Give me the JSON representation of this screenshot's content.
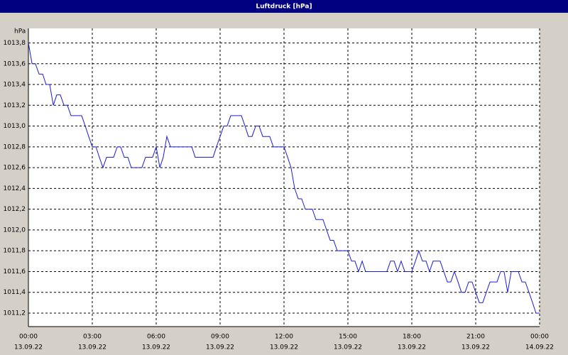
{
  "chart_data": {
    "type": "line",
    "title": "Luftdruck [hPa]",
    "y_unit": "hPa",
    "grid": true,
    "xlim": [
      0,
      24
    ],
    "ylim": [
      1011.07,
      1013.94
    ],
    "xticks": [
      {
        "value": 0,
        "label": "00:00",
        "date": "13.09.22"
      },
      {
        "value": 3,
        "label": "03:00",
        "date": "13.09.22"
      },
      {
        "value": 6,
        "label": "06:00",
        "date": "13.09.22"
      },
      {
        "value": 9,
        "label": "09:00",
        "date": "13.09.22"
      },
      {
        "value": 12,
        "label": "12:00",
        "date": "13.09.22"
      },
      {
        "value": 15,
        "label": "15:00",
        "date": "13.09.22"
      },
      {
        "value": 18,
        "label": "18:00",
        "date": "13.09.22"
      },
      {
        "value": 21,
        "label": "21:00",
        "date": "13.09.22"
      },
      {
        "value": 24,
        "label": "00:00",
        "date": "14.09.22"
      }
    ],
    "yticks": [
      {
        "value": 1011.2,
        "label": "1011,2"
      },
      {
        "value": 1011.4,
        "label": "1011,4"
      },
      {
        "value": 1011.6,
        "label": "1011,6"
      },
      {
        "value": 1011.8,
        "label": "1011,8"
      },
      {
        "value": 1012.0,
        "label": "1012,0"
      },
      {
        "value": 1012.2,
        "label": "1012,2"
      },
      {
        "value": 1012.4,
        "label": "1012,4"
      },
      {
        "value": 1012.6,
        "label": "1012,6"
      },
      {
        "value": 1012.8,
        "label": "1012,8"
      },
      {
        "value": 1013.0,
        "label": "1013,0"
      },
      {
        "value": 1013.2,
        "label": "1013,2"
      },
      {
        "value": 1013.4,
        "label": "1013,4"
      },
      {
        "value": 1013.6,
        "label": "1013,6"
      },
      {
        "value": 1013.8,
        "label": "1013,8"
      }
    ],
    "series": [
      {
        "color": "#1c1cd8",
        "x": [
          0,
          0.17,
          0.33,
          0.5,
          0.67,
          0.83,
          1.0,
          1.17,
          1.33,
          1.5,
          1.67,
          1.83,
          2.0,
          2.5,
          2.67,
          2.83,
          3.0,
          3.17,
          3.33,
          3.5,
          3.67,
          4.0,
          4.17,
          4.33,
          4.5,
          4.67,
          4.83,
          5.33,
          5.5,
          5.83,
          6.0,
          6.17,
          6.33,
          6.5,
          6.67,
          7.67,
          7.83,
          8.67,
          8.83,
          9.0,
          9.17,
          9.33,
          9.5,
          10.0,
          10.17,
          10.33,
          10.5,
          10.67,
          10.83,
          11.0,
          11.33,
          11.5,
          11.83,
          12.0,
          12.17,
          12.33,
          12.5,
          12.67,
          12.83,
          13.0,
          13.33,
          13.5,
          13.83,
          14.0,
          14.17,
          14.33,
          14.5,
          14.83,
          15.0,
          15.17,
          15.33,
          15.5,
          15.67,
          15.83,
          16.83,
          17.0,
          17.17,
          17.33,
          17.5,
          17.67,
          17.83,
          18.0,
          18.17,
          18.33,
          18.5,
          18.67,
          18.83,
          19.0,
          19.33,
          19.5,
          19.67,
          19.83,
          20.0,
          20.17,
          20.33,
          20.5,
          20.67,
          20.83,
          21.0,
          21.17,
          21.33,
          21.5,
          21.67,
          22.0,
          22.17,
          22.33,
          22.5,
          22.67,
          23.0,
          23.17,
          23.33,
          23.5,
          23.67,
          23.83,
          24.0
        ],
        "values": [
          1013.8,
          1013.6,
          1013.6,
          1013.5,
          1013.5,
          1013.4,
          1013.4,
          1013.2,
          1013.3,
          1013.3,
          1013.2,
          1013.2,
          1013.1,
          1013.1,
          1013.0,
          1012.9,
          1012.8,
          1012.8,
          1012.7,
          1012.6,
          1012.7,
          1012.7,
          1012.8,
          1012.8,
          1012.7,
          1012.7,
          1012.6,
          1012.6,
          1012.7,
          1012.7,
          1012.8,
          1012.6,
          1012.7,
          1012.9,
          1012.8,
          1012.8,
          1012.7,
          1012.7,
          1012.8,
          1012.9,
          1013.0,
          1013.0,
          1013.1,
          1013.1,
          1013.0,
          1012.9,
          1012.9,
          1013.0,
          1013.0,
          1012.9,
          1012.9,
          1012.8,
          1012.8,
          1012.8,
          1012.7,
          1012.6,
          1012.4,
          1012.3,
          1012.3,
          1012.2,
          1012.2,
          1012.1,
          1012.1,
          1012.0,
          1011.9,
          1011.9,
          1011.8,
          1011.8,
          1011.8,
          1011.7,
          1011.7,
          1011.6,
          1011.7,
          1011.6,
          1011.6,
          1011.7,
          1011.7,
          1011.6,
          1011.7,
          1011.6,
          1011.6,
          1011.6,
          1011.7,
          1011.8,
          1011.7,
          1011.7,
          1011.6,
          1011.7,
          1011.7,
          1011.6,
          1011.5,
          1011.5,
          1011.6,
          1011.5,
          1011.4,
          1011.4,
          1011.5,
          1011.5,
          1011.4,
          1011.3,
          1011.3,
          1011.4,
          1011.5,
          1011.5,
          1011.6,
          1011.6,
          1011.4,
          1011.6,
          1011.6,
          1011.5,
          1011.5,
          1011.4,
          1011.3,
          1011.2,
          1011.2
        ]
      }
    ]
  }
}
